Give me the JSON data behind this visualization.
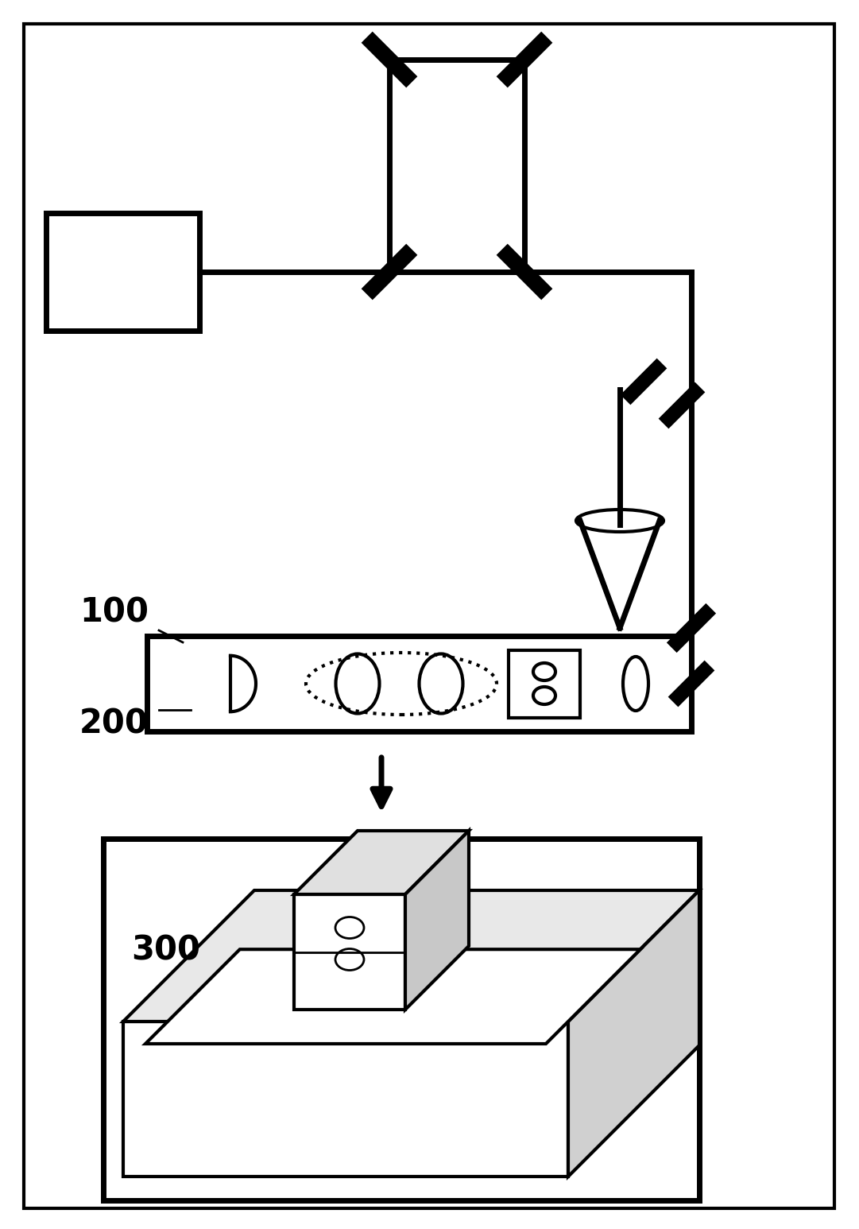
{
  "bg_color": "#ffffff",
  "lw_thick": 5.0,
  "lw_medium": 3.0,
  "lw_thin": 2.0,
  "label_100": "100",
  "label_200": "200",
  "label_300": "300"
}
